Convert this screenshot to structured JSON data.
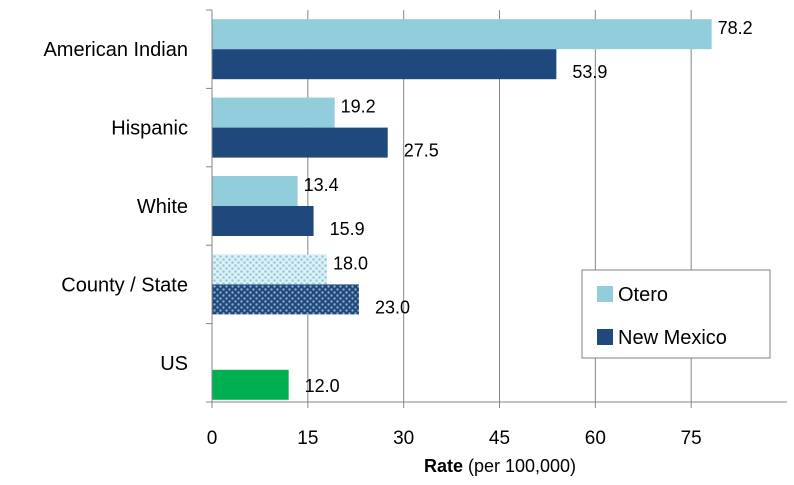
{
  "chart_data": {
    "type": "bar",
    "orientation": "horizontal",
    "categories": [
      "American Indian",
      "Hispanic",
      "White",
      "County / State",
      "US"
    ],
    "series": [
      {
        "name": "Otero",
        "values": [
          78.2,
          19.2,
          13.4,
          18.0,
          null
        ],
        "color": "#92cddc"
      },
      {
        "name": "New Mexico",
        "values": [
          53.9,
          27.5,
          15.9,
          23.0,
          null
        ],
        "color": "#1f497d"
      }
    ],
    "us": {
      "category": "US",
      "value": 12.0,
      "color": "#00b050"
    },
    "data_labels": {
      "otero": [
        "78.2",
        "19.2",
        "13.4",
        "18.0"
      ],
      "new_mexico": [
        "53.9",
        "27.5",
        "15.9",
        "23.0"
      ],
      "us": "12.0"
    },
    "patterned_category": "County / State",
    "x_ticks": [
      "0",
      "15",
      "30",
      "45",
      "60",
      "75"
    ],
    "xlim": [
      0,
      90
    ],
    "xlabel_bold": "Rate",
    "xlabel_rest": " (per 100,000)",
    "grid": "vertical",
    "legend_position": "bottom-right"
  }
}
